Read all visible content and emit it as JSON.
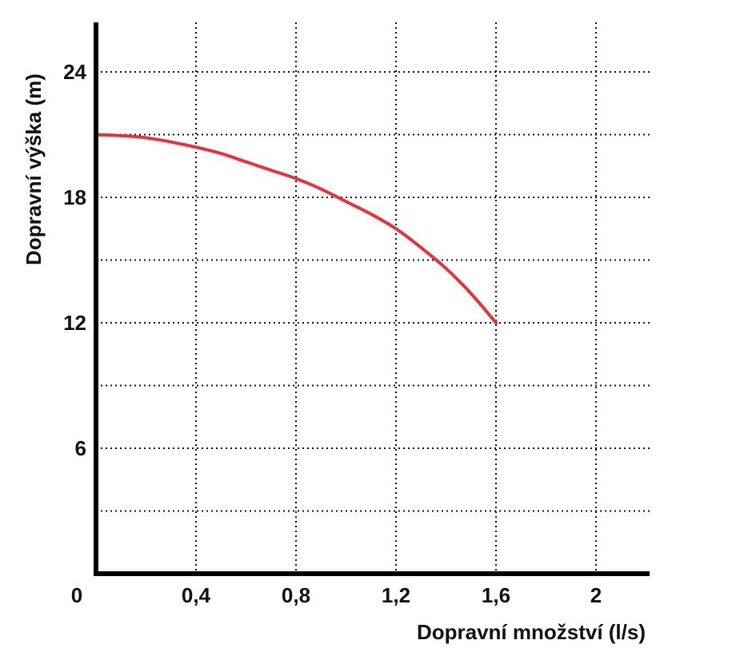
{
  "chart_data": {
    "type": "line",
    "xlabel": "Dopravní množství (l/s)",
    "ylabel": "Dopravní výška (m)",
    "xlim": [
      0,
      2.2
    ],
    "ylim": [
      0,
      27
    ],
    "x_ticks": [
      0,
      0.4,
      0.8,
      1.2,
      1.6,
      2
    ],
    "x_tick_labels": [
      "0",
      "0,4",
      "0,8",
      "1,2",
      "1,6",
      "2"
    ],
    "y_ticks": [
      6,
      12,
      18,
      24
    ],
    "y_tick_labels": [
      "6",
      "12",
      "18",
      "24"
    ],
    "grid": true,
    "x_grid": [
      0.4,
      0.8,
      1.2,
      1.6,
      2
    ],
    "y_grid": [
      3,
      6,
      9,
      12,
      15,
      18,
      21,
      24
    ],
    "series": [
      {
        "color": "#e8313a",
        "x": [
          0,
          0.1,
          0.2,
          0.3,
          0.4,
          0.5,
          0.6,
          0.7,
          0.8,
          0.9,
          1.0,
          1.1,
          1.2,
          1.3,
          1.4,
          1.5,
          1.6
        ],
        "y": [
          21.0,
          20.95,
          20.85,
          20.65,
          20.4,
          20.1,
          19.7,
          19.3,
          18.9,
          18.4,
          17.8,
          17.2,
          16.5,
          15.6,
          14.6,
          13.4,
          12.0
        ]
      }
    ]
  }
}
